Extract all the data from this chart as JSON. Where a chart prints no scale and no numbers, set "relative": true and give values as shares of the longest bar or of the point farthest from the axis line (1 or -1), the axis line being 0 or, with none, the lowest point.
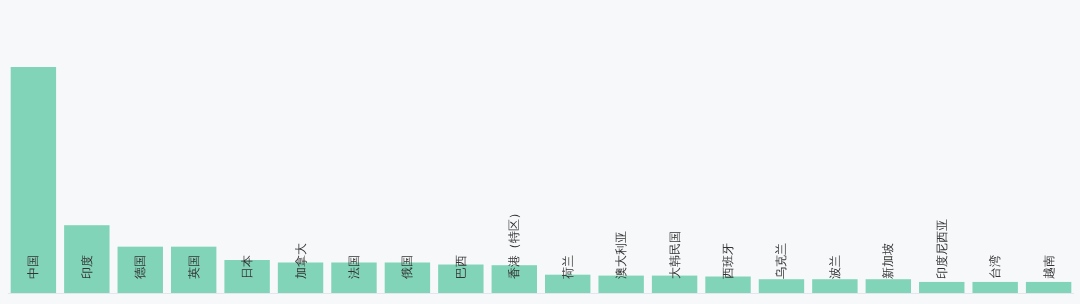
{
  "chart_data": {
    "type": "bar",
    "relative": true,
    "color": "#82d4b8",
    "categories": [
      "中国",
      "印度",
      "德国",
      "英国",
      "日本",
      "加拿大",
      "法国",
      "俄国",
      "巴西",
      "香港（特区）",
      "荷兰",
      "澳大利亚",
      "大韩民国",
      "西班牙",
      "乌克兰",
      "波兰",
      "新加坡",
      "印度尼西亚",
      "台湾",
      "越南"
    ],
    "values": [
      1,
      0.3,
      0.205,
      0.205,
      0.146,
      0.135,
      0.135,
      0.135,
      0.126,
      0.123,
      0.081,
      0.077,
      0.077,
      0.073,
      0.061,
      0.061,
      0.061,
      0.049,
      0.049,
      0.049
    ]
  }
}
